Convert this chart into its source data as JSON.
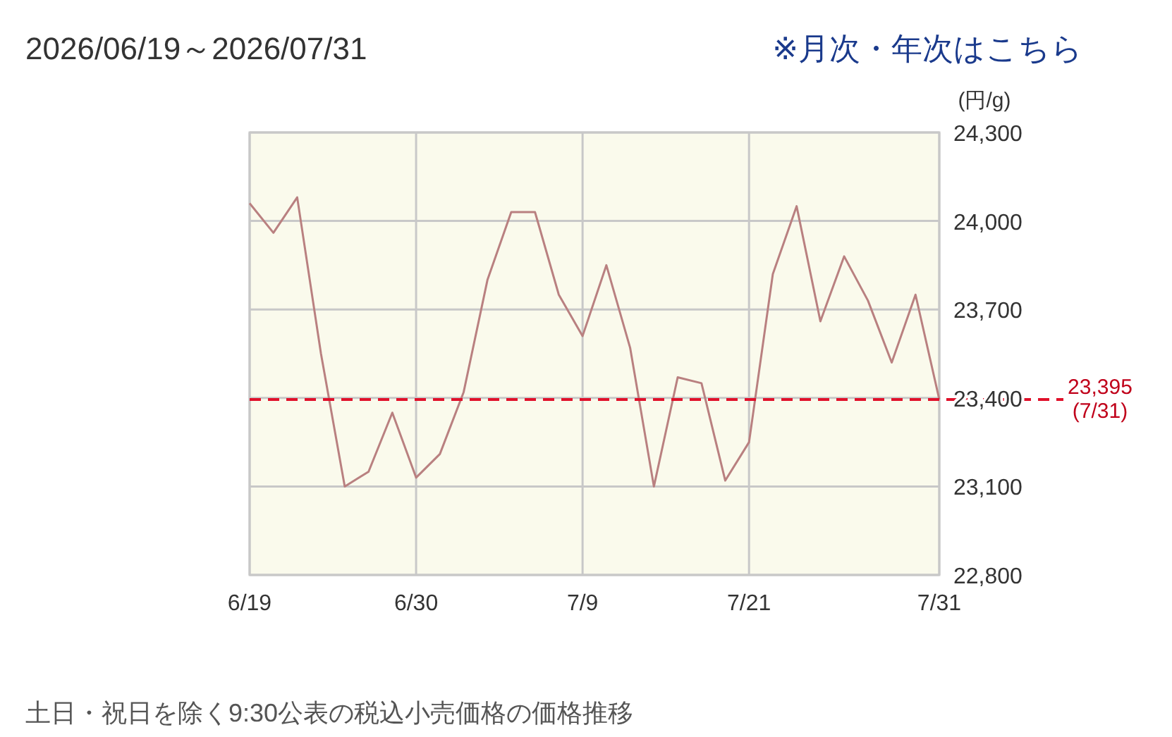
{
  "chart_data": {
    "type": "line",
    "title": "2026/06/19～2026/07/31",
    "ylabel": "(円/g)",
    "annotations": [
      "※月次・年次はこちら",
      "土日・祝日を除く9:30公表の税込小売価格の価格推移"
    ],
    "categories": [
      "6/19",
      null,
      null,
      null,
      null,
      null,
      null,
      "6/30",
      null,
      null,
      null,
      null,
      null,
      null,
      "7/9",
      null,
      null,
      null,
      null,
      null,
      null,
      "7/21",
      null,
      null,
      null,
      null,
      null,
      null,
      null,
      "7/31"
    ],
    "series": [
      {
        "color": "#b98080",
        "values": [
          24060,
          23960,
          24080,
          23550,
          23100,
          23150,
          23350,
          23130,
          23210,
          23420,
          23800,
          24030,
          24030,
          23750,
          23610,
          23850,
          23570,
          23100,
          23470,
          23450,
          23120,
          23250,
          23820,
          24050,
          23660,
          23880,
          23730,
          23520,
          23750,
          23395
        ]
      }
    ],
    "ylim": [
      22800,
      24300
    ],
    "yticks": [
      {
        "value": 22800,
        "label": "22,800"
      },
      {
        "value": 23100,
        "label": "23,100"
      },
      {
        "value": 23400,
        "label": "23,400"
      },
      {
        "value": 23700,
        "label": "23,700"
      },
      {
        "value": 24000,
        "label": "24,000"
      },
      {
        "value": 24300,
        "label": "24,300"
      }
    ],
    "grid": true,
    "marker": "none",
    "line_style": "solid",
    "ref_lines": [
      {
        "axis": "y",
        "value": 23395,
        "label": "23,395\n(7/31)",
        "color": "#e0102a",
        "line_style": "dashed"
      }
    ]
  }
}
